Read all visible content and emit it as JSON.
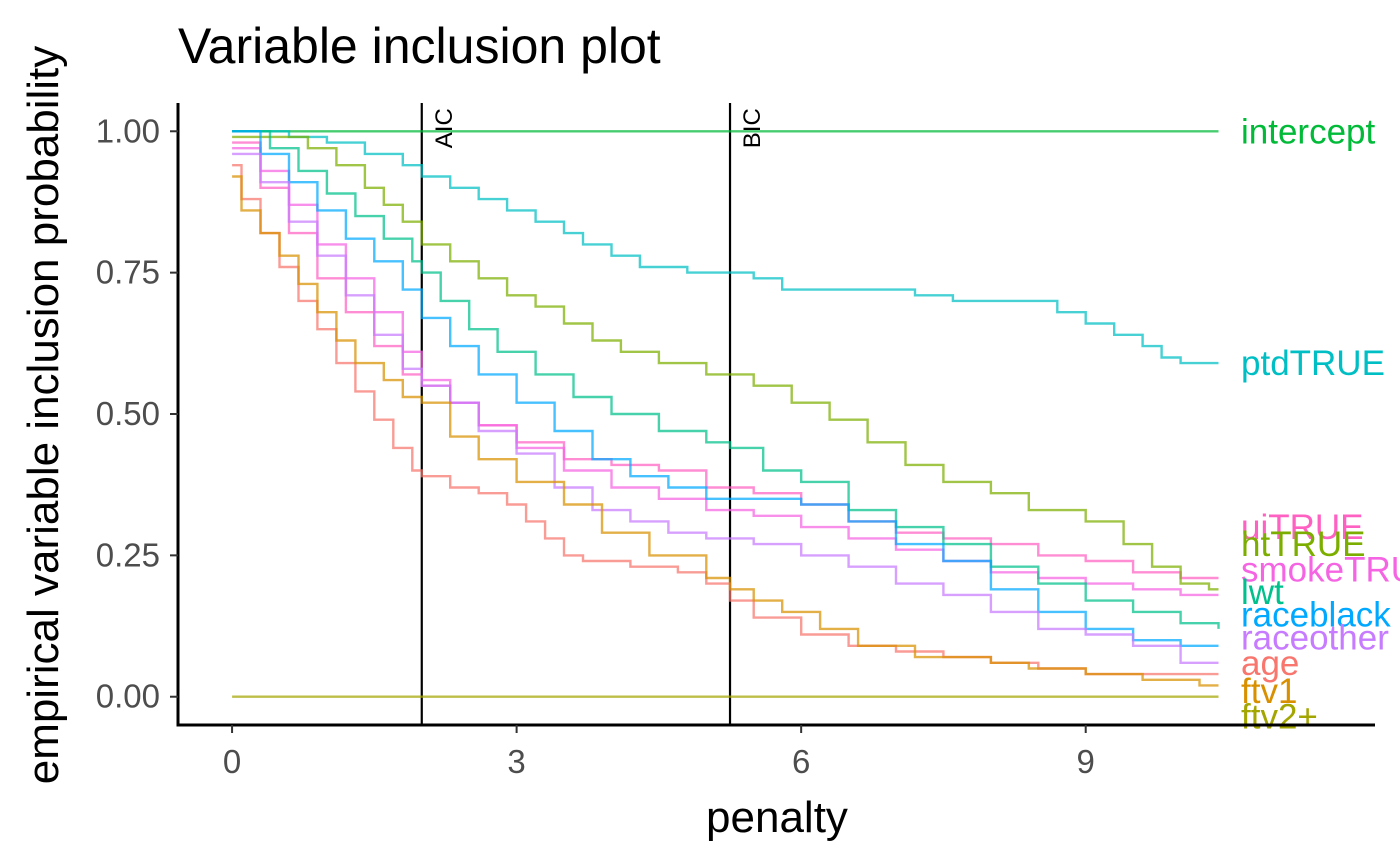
{
  "chart_data": {
    "type": "line",
    "title": "Variable inclusion plot",
    "xlabel": "penalty",
    "ylabel": "empirical variable inclusion probability",
    "xlim": [
      -0.57,
      12.05
    ],
    "ylim": [
      -0.05,
      1.05
    ],
    "x_ticks": [
      0,
      3,
      6,
      9
    ],
    "x_tick_labels": [
      "0",
      "3",
      "6",
      "9"
    ],
    "y_ticks": [
      0,
      0.25,
      0.5,
      0.75,
      1
    ],
    "y_tick_labels": [
      "0.00",
      "0.25",
      "0.50",
      "0.75",
      "1.00"
    ],
    "step": true,
    "grid": false,
    "legend": "direct labels at right end of each line",
    "vlines": [
      {
        "x": 2,
        "label": "AIC"
      },
      {
        "x": 5.25,
        "label": "BIC"
      }
    ],
    "series": [
      {
        "name": "intercept",
        "color": "#00BA38",
        "label_y": 1.0,
        "points": [
          [
            0,
            1.0
          ],
          [
            10.4,
            1.0
          ]
        ]
      },
      {
        "name": "ptdTRUE",
        "color": "#00BFC4",
        "label_y": 0.59,
        "points": [
          [
            0,
            1.0
          ],
          [
            0.4,
            1.0
          ],
          [
            0.6,
            0.99
          ],
          [
            1.0,
            0.98
          ],
          [
            1.4,
            0.96
          ],
          [
            1.8,
            0.94
          ],
          [
            2.0,
            0.92
          ],
          [
            2.3,
            0.9
          ],
          [
            2.6,
            0.88
          ],
          [
            2.9,
            0.86
          ],
          [
            3.2,
            0.84
          ],
          [
            3.5,
            0.82
          ],
          [
            3.7,
            0.8
          ],
          [
            4.0,
            0.78
          ],
          [
            4.3,
            0.76
          ],
          [
            4.8,
            0.75
          ],
          [
            5.25,
            0.75
          ],
          [
            5.5,
            0.74
          ],
          [
            5.8,
            0.72
          ],
          [
            6.3,
            0.72
          ],
          [
            7.2,
            0.71
          ],
          [
            7.6,
            0.7
          ],
          [
            8.4,
            0.7
          ],
          [
            8.7,
            0.68
          ],
          [
            9.0,
            0.66
          ],
          [
            9.3,
            0.64
          ],
          [
            9.6,
            0.62
          ],
          [
            9.8,
            0.6
          ],
          [
            10.0,
            0.59
          ],
          [
            10.4,
            0.59
          ]
        ]
      },
      {
        "name": "uiTRUE",
        "color": "#FF61C3",
        "label_y": 0.3,
        "points": [
          [
            0,
            0.98
          ],
          [
            0.3,
            0.9
          ],
          [
            0.6,
            0.82
          ],
          [
            0.9,
            0.74
          ],
          [
            1.2,
            0.68
          ],
          [
            1.5,
            0.62
          ],
          [
            1.8,
            0.57
          ],
          [
            2.0,
            0.55
          ],
          [
            2.3,
            0.52
          ],
          [
            2.6,
            0.48
          ],
          [
            3.0,
            0.45
          ],
          [
            3.5,
            0.42
          ],
          [
            4.0,
            0.41
          ],
          [
            4.5,
            0.4
          ],
          [
            5.0,
            0.37
          ],
          [
            5.5,
            0.36
          ],
          [
            6.0,
            0.34
          ],
          [
            6.5,
            0.31
          ],
          [
            7.0,
            0.29
          ],
          [
            7.5,
            0.28
          ],
          [
            8.0,
            0.27
          ],
          [
            8.5,
            0.25
          ],
          [
            9.0,
            0.24
          ],
          [
            9.5,
            0.22
          ],
          [
            10.0,
            0.21
          ],
          [
            10.4,
            0.21
          ]
        ]
      },
      {
        "name": "htTRUE",
        "color": "#7CAE00",
        "label_y": 0.27,
        "points": [
          [
            0,
            0.99
          ],
          [
            0.8,
            0.97
          ],
          [
            1.1,
            0.94
          ],
          [
            1.4,
            0.9
          ],
          [
            1.6,
            0.87
          ],
          [
            1.8,
            0.84
          ],
          [
            2.0,
            0.8
          ],
          [
            2.3,
            0.77
          ],
          [
            2.6,
            0.74
          ],
          [
            2.9,
            0.71
          ],
          [
            3.2,
            0.69
          ],
          [
            3.5,
            0.66
          ],
          [
            3.8,
            0.63
          ],
          [
            4.1,
            0.61
          ],
          [
            4.5,
            0.59
          ],
          [
            5.0,
            0.57
          ],
          [
            5.25,
            0.57
          ],
          [
            5.5,
            0.55
          ],
          [
            5.9,
            0.52
          ],
          [
            6.3,
            0.49
          ],
          [
            6.7,
            0.45
          ],
          [
            7.1,
            0.41
          ],
          [
            7.5,
            0.38
          ],
          [
            8.0,
            0.36
          ],
          [
            8.4,
            0.33
          ],
          [
            9.0,
            0.31
          ],
          [
            9.4,
            0.27
          ],
          [
            9.7,
            0.23
          ],
          [
            10.0,
            0.2
          ],
          [
            10.3,
            0.19
          ],
          [
            10.4,
            0.19
          ]
        ]
      },
      {
        "name": "smokeTRUE",
        "color": "#F564E3",
        "label_y": 0.225,
        "points": [
          [
            0,
            0.97
          ],
          [
            0.3,
            0.93
          ],
          [
            0.6,
            0.87
          ],
          [
            0.9,
            0.8
          ],
          [
            1.2,
            0.74
          ],
          [
            1.5,
            0.68
          ],
          [
            1.8,
            0.61
          ],
          [
            2.0,
            0.56
          ],
          [
            2.3,
            0.52
          ],
          [
            2.6,
            0.48
          ],
          [
            3.0,
            0.44
          ],
          [
            3.5,
            0.4
          ],
          [
            4.0,
            0.37
          ],
          [
            4.5,
            0.35
          ],
          [
            5.0,
            0.33
          ],
          [
            5.5,
            0.32
          ],
          [
            6.0,
            0.3
          ],
          [
            6.5,
            0.28
          ],
          [
            7.0,
            0.26
          ],
          [
            7.5,
            0.24
          ],
          [
            8.0,
            0.22
          ],
          [
            8.5,
            0.21
          ],
          [
            9.0,
            0.2
          ],
          [
            9.5,
            0.19
          ],
          [
            10.0,
            0.18
          ],
          [
            10.4,
            0.18
          ]
        ]
      },
      {
        "name": "lwt",
        "color": "#00C08B",
        "label_y": 0.185,
        "points": [
          [
            0,
            1.0
          ],
          [
            0.4,
            0.97
          ],
          [
            0.7,
            0.93
          ],
          [
            1.0,
            0.89
          ],
          [
            1.3,
            0.85
          ],
          [
            1.6,
            0.81
          ],
          [
            1.9,
            0.77
          ],
          [
            2.0,
            0.75
          ],
          [
            2.2,
            0.7
          ],
          [
            2.5,
            0.65
          ],
          [
            2.8,
            0.61
          ],
          [
            3.2,
            0.57
          ],
          [
            3.6,
            0.53
          ],
          [
            4.0,
            0.5
          ],
          [
            4.5,
            0.47
          ],
          [
            5.0,
            0.45
          ],
          [
            5.25,
            0.44
          ],
          [
            5.6,
            0.4
          ],
          [
            6.0,
            0.38
          ],
          [
            6.5,
            0.33
          ],
          [
            7.0,
            0.3
          ],
          [
            7.5,
            0.27
          ],
          [
            8.0,
            0.23
          ],
          [
            8.5,
            0.2
          ],
          [
            9.0,
            0.17
          ],
          [
            9.5,
            0.15
          ],
          [
            10.0,
            0.13
          ],
          [
            10.4,
            0.12
          ]
        ]
      },
      {
        "name": "raceblack",
        "color": "#00A9FF",
        "label_y": 0.145,
        "points": [
          [
            0,
            1.0
          ],
          [
            0.3,
            0.96
          ],
          [
            0.6,
            0.91
          ],
          [
            0.9,
            0.86
          ],
          [
            1.2,
            0.81
          ],
          [
            1.5,
            0.77
          ],
          [
            1.8,
            0.72
          ],
          [
            2.0,
            0.67
          ],
          [
            2.3,
            0.62
          ],
          [
            2.6,
            0.57
          ],
          [
            3.0,
            0.52
          ],
          [
            3.4,
            0.47
          ],
          [
            3.8,
            0.42
          ],
          [
            4.2,
            0.39
          ],
          [
            4.6,
            0.37
          ],
          [
            5.0,
            0.35
          ],
          [
            5.5,
            0.35
          ],
          [
            6.0,
            0.34
          ],
          [
            6.5,
            0.31
          ],
          [
            7.0,
            0.27
          ],
          [
            7.5,
            0.24
          ],
          [
            8.0,
            0.19
          ],
          [
            8.5,
            0.15
          ],
          [
            9.0,
            0.12
          ],
          [
            9.5,
            0.1
          ],
          [
            10.0,
            0.09
          ],
          [
            10.4,
            0.09
          ]
        ]
      },
      {
        "name": "raceother",
        "color": "#C77CFF",
        "label_y": 0.105,
        "points": [
          [
            0,
            0.96
          ],
          [
            0.3,
            0.91
          ],
          [
            0.6,
            0.84
          ],
          [
            0.9,
            0.78
          ],
          [
            1.2,
            0.71
          ],
          [
            1.5,
            0.64
          ],
          [
            1.8,
            0.58
          ],
          [
            2.0,
            0.55
          ],
          [
            2.3,
            0.52
          ],
          [
            2.6,
            0.47
          ],
          [
            3.0,
            0.43
          ],
          [
            3.4,
            0.37
          ],
          [
            3.8,
            0.33
          ],
          [
            4.2,
            0.31
          ],
          [
            4.6,
            0.29
          ],
          [
            5.0,
            0.28
          ],
          [
            5.5,
            0.27
          ],
          [
            6.0,
            0.25
          ],
          [
            6.5,
            0.23
          ],
          [
            7.0,
            0.2
          ],
          [
            7.5,
            0.18
          ],
          [
            8.0,
            0.15
          ],
          [
            8.5,
            0.12
          ],
          [
            9.0,
            0.11
          ],
          [
            9.5,
            0.09
          ],
          [
            10.0,
            0.06
          ],
          [
            10.4,
            0.06
          ]
        ]
      },
      {
        "name": "age",
        "color": "#F8766D",
        "label_y": 0.06,
        "points": [
          [
            0,
            0.94
          ],
          [
            0.1,
            0.88
          ],
          [
            0.3,
            0.82
          ],
          [
            0.5,
            0.76
          ],
          [
            0.7,
            0.7
          ],
          [
            0.9,
            0.65
          ],
          [
            1.1,
            0.59
          ],
          [
            1.3,
            0.54
          ],
          [
            1.5,
            0.49
          ],
          [
            1.7,
            0.44
          ],
          [
            1.9,
            0.4
          ],
          [
            2.0,
            0.39
          ],
          [
            2.3,
            0.37
          ],
          [
            2.6,
            0.36
          ],
          [
            2.9,
            0.34
          ],
          [
            3.1,
            0.31
          ],
          [
            3.3,
            0.28
          ],
          [
            3.5,
            0.25
          ],
          [
            3.7,
            0.24
          ],
          [
            4.2,
            0.23
          ],
          [
            4.7,
            0.22
          ],
          [
            5.0,
            0.2
          ],
          [
            5.25,
            0.17
          ],
          [
            5.5,
            0.14
          ],
          [
            6.0,
            0.11
          ],
          [
            6.5,
            0.09
          ],
          [
            7.0,
            0.08
          ],
          [
            7.5,
            0.07
          ],
          [
            8.0,
            0.06
          ],
          [
            8.5,
            0.05
          ],
          [
            9.0,
            0.04
          ],
          [
            10.4,
            0.04
          ]
        ]
      },
      {
        "name": "ftv1",
        "color": "#D89000",
        "label_y": 0.01,
        "points": [
          [
            0,
            0.92
          ],
          [
            0.1,
            0.86
          ],
          [
            0.3,
            0.82
          ],
          [
            0.5,
            0.78
          ],
          [
            0.7,
            0.73
          ],
          [
            0.9,
            0.68
          ],
          [
            1.1,
            0.63
          ],
          [
            1.3,
            0.59
          ],
          [
            1.6,
            0.56
          ],
          [
            1.8,
            0.53
          ],
          [
            2.0,
            0.52
          ],
          [
            2.3,
            0.46
          ],
          [
            2.6,
            0.42
          ],
          [
            3.0,
            0.38
          ],
          [
            3.5,
            0.34
          ],
          [
            3.9,
            0.29
          ],
          [
            4.4,
            0.25
          ],
          [
            5.0,
            0.21
          ],
          [
            5.25,
            0.19
          ],
          [
            5.5,
            0.17
          ],
          [
            5.8,
            0.15
          ],
          [
            6.2,
            0.12
          ],
          [
            6.6,
            0.09
          ],
          [
            7.2,
            0.07
          ],
          [
            8.0,
            0.06
          ],
          [
            8.4,
            0.05
          ],
          [
            9.0,
            0.04
          ],
          [
            9.6,
            0.03
          ],
          [
            10.1,
            0.03
          ],
          [
            10.2,
            0.02
          ],
          [
            10.4,
            0.02
          ]
        ]
      },
      {
        "name": "ftv2+",
        "color": "#A3A500",
        "label_y": -0.035,
        "points": [
          [
            0,
            0.0
          ],
          [
            10.4,
            0.0
          ]
        ]
      }
    ]
  }
}
